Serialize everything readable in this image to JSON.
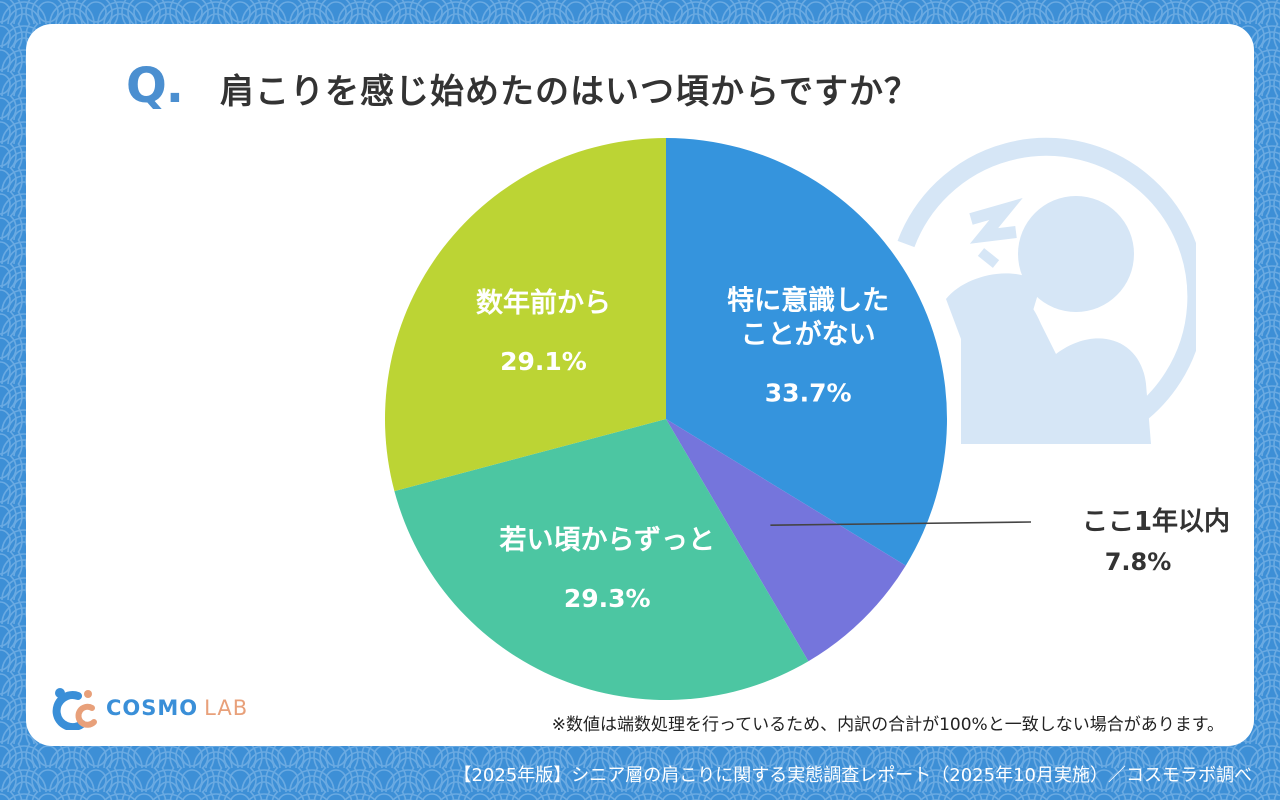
{
  "header": {
    "q_mark": "Q.",
    "title": "肩こりを感じ始めたのはいつ頃からですか？"
  },
  "chart_data": {
    "type": "pie",
    "slices": [
      {
        "label": "特に意識したことがない",
        "label_lines": [
          "特に意識した",
          "ことがない"
        ],
        "value": 33.7,
        "value_label": "33.7%",
        "color": "#3594dd"
      },
      {
        "label": "ここ1年以内",
        "label_lines": [
          "ここ1年以内"
        ],
        "value": 7.8,
        "value_label": "7.8%",
        "color": "#7575dc"
      },
      {
        "label": "若い頃からずっと",
        "label_lines": [
          "若い頃からずっと"
        ],
        "value": 29.3,
        "value_label": "29.3%",
        "color": "#4cc6a2"
      },
      {
        "label": "数年前から",
        "label_lines": [
          "数年前から"
        ],
        "value": 29.1,
        "value_label": "29.1%",
        "color": "#bcd434"
      }
    ],
    "start": "12 o'clock",
    "direction": "clockwise"
  },
  "note": "※数値は端数処理を行っているため、内訳の合計が100%と一致しない場合があります。",
  "footer": "【2025年版】シニア層の肩こりに関する実態調査レポート（2025年10月実施）／コスモラボ調べ",
  "logo": {
    "brand": "COSMO",
    "suffix": "LAB"
  },
  "colors": {
    "background": "#3d8fd6",
    "card": "#ffffff",
    "accent": "#4b8fd0",
    "illustration": "#d6e6f6"
  },
  "icons": {
    "illustration": "shoulder-pain-person-icon"
  }
}
